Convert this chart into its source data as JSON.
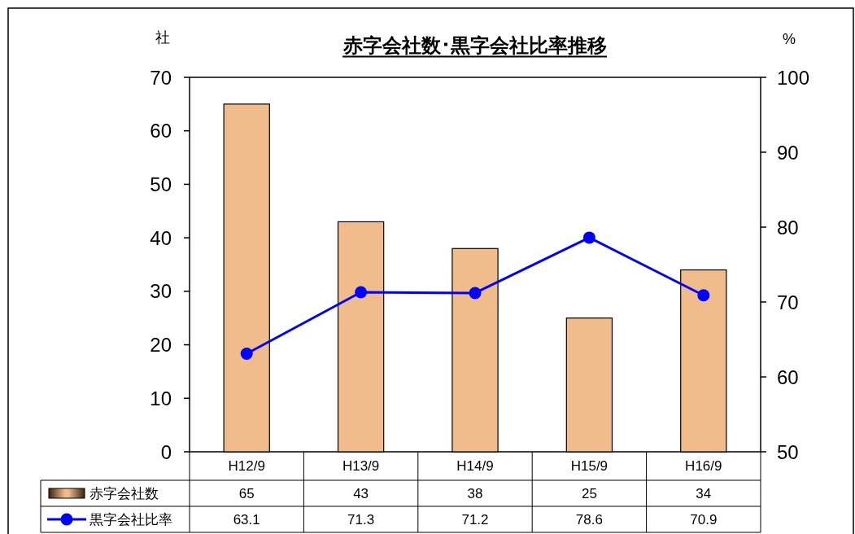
{
  "chart_data": {
    "type": "bar",
    "title": "赤字会社数･黒字会社比率推移",
    "ylabel": "社",
    "y2label": "%",
    "categories": [
      "H12/9",
      "H13/9",
      "H14/9",
      "H15/9",
      "H16/9"
    ],
    "series": [
      {
        "name": "赤字会社数",
        "color": "#f0bc8c",
        "values": [
          65,
          43,
          38,
          25,
          34
        ]
      },
      {
        "name": "黒字会社比率",
        "type": "line",
        "axis": "y2",
        "color": "#0000ff",
        "values": [
          63.1,
          71.3,
          71.2,
          78.6,
          70.9
        ]
      }
    ],
    "ylim": [
      0,
      70
    ],
    "yticks": [
      0,
      10,
      20,
      30,
      40,
      50,
      60,
      70
    ],
    "y2lim": [
      50,
      100
    ],
    "y2ticks": [
      50,
      60,
      70,
      80,
      90,
      100
    ],
    "marker": "circle",
    "line_style": "solid",
    "data_labels": true,
    "legend": "bottom",
    "grid": false
  }
}
